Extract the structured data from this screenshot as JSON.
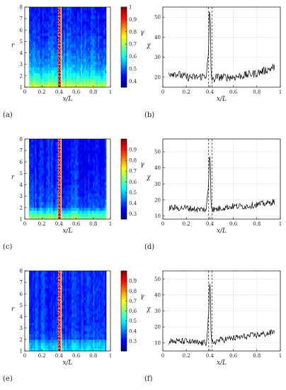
{
  "chart_data": [
    {
      "panel": "(a)",
      "type": "heatmap",
      "xlabel": "x/L",
      "ylabel": "r",
      "colorbar_label": "γ",
      "xlim": [
        0,
        1
      ],
      "ylim": [
        1,
        8
      ],
      "clim": [
        0.35,
        1
      ],
      "x_ticks": [
        "0",
        "0.2",
        "0.4",
        "0.6",
        "0.8",
        "1"
      ],
      "y_ticks": [
        "1",
        "2",
        "3",
        "4",
        "5",
        "6",
        "7",
        "8"
      ],
      "colorbar_ticks": [
        "0.4",
        "0.5",
        "0.6",
        "0.7",
        "0.8",
        "0.9",
        "1"
      ],
      "base_profile": {
        "r": [
          1,
          1.5,
          2,
          2.5,
          3,
          4,
          5,
          6,
          7,
          8
        ],
        "value": [
          0.74,
          0.66,
          0.6,
          0.56,
          0.53,
          0.5,
          0.48,
          0.46,
          0.45,
          0.44
        ]
      },
      "band_x": [
        0.39,
        0.42
      ],
      "band_value": 0.95,
      "data_x_range": [
        0.05,
        0.95
      ],
      "colormap": "jet"
    },
    {
      "panel": "(b)",
      "type": "line",
      "xlabel": "x/L",
      "ylabel": "χ",
      "xlim": [
        0,
        1
      ],
      "ylim": [
        15,
        55
      ],
      "x_ticks": [
        "0",
        "0.2",
        "0.4",
        "0.6",
        "0.8",
        "1"
      ],
      "y_ticks": [
        "20",
        "30",
        "40",
        "50"
      ],
      "dashed_lines_x": [
        0.39,
        0.42
      ],
      "grid": true,
      "series": [
        {
          "x": [
            0.05,
            0.1,
            0.2,
            0.3,
            0.37,
            0.39,
            0.395,
            0.4,
            0.405,
            0.41,
            0.42,
            0.45,
            0.5,
            0.6,
            0.7,
            0.8,
            0.9,
            0.95
          ],
          "values": [
            22,
            22,
            20,
            20,
            21,
            32,
            50,
            52,
            48,
            24,
            18,
            20,
            20,
            20,
            21,
            22,
            24,
            25
          ]
        }
      ]
    },
    {
      "panel": "(c)",
      "type": "heatmap",
      "xlabel": "x/L",
      "ylabel": "r",
      "colorbar_label": "γ",
      "xlim": [
        0,
        1
      ],
      "ylim": [
        1,
        8
      ],
      "clim": [
        0.25,
        1
      ],
      "x_ticks": [
        "0",
        "0.2",
        "0.4",
        "0.6",
        "0.8",
        "1"
      ],
      "y_ticks": [
        "1",
        "2",
        "3",
        "4",
        "5",
        "6",
        "7",
        "8"
      ],
      "colorbar_ticks": [
        "0.3",
        "0.4",
        "0.5",
        "0.6",
        "0.7",
        "0.8",
        "0.9"
      ],
      "base_profile": {
        "r": [
          1,
          1.3,
          1.7,
          2,
          2.5,
          3,
          4,
          5,
          6,
          7,
          8
        ],
        "value": [
          0.66,
          0.6,
          0.52,
          0.42,
          0.4,
          0.39,
          0.37,
          0.36,
          0.36,
          0.35,
          0.35
        ]
      },
      "band_x": [
        0.39,
        0.42
      ],
      "band_value": 0.92,
      "data_x_range": [
        0.05,
        0.95
      ],
      "colormap": "jet"
    },
    {
      "panel": "(d)",
      "type": "line",
      "xlabel": "x/L",
      "ylabel": "χ",
      "xlim": [
        0,
        1
      ],
      "ylim": [
        8,
        58
      ],
      "x_ticks": [
        "0",
        "0.2",
        "0.4",
        "0.6",
        "0.8",
        "1"
      ],
      "y_ticks": [
        "10",
        "20",
        "30",
        "40",
        "50"
      ],
      "dashed_lines_x": [
        0.39,
        0.42
      ],
      "grid": true,
      "series": [
        {
          "x": [
            0.05,
            0.1,
            0.2,
            0.3,
            0.37,
            0.39,
            0.395,
            0.4,
            0.405,
            0.41,
            0.42,
            0.45,
            0.5,
            0.6,
            0.7,
            0.8,
            0.9,
            0.95
          ],
          "values": [
            15,
            15,
            15,
            14,
            14,
            30,
            47,
            48,
            44,
            20,
            14,
            14,
            15,
            16,
            16,
            17,
            18,
            19
          ]
        }
      ]
    },
    {
      "panel": "(e)",
      "type": "heatmap",
      "xlabel": "x/L",
      "ylabel": "r",
      "colorbar_label": "γ",
      "xlim": [
        0,
        1
      ],
      "ylim": [
        1,
        8
      ],
      "clim": [
        0.2,
        1
      ],
      "x_ticks": [
        "0",
        "0.2",
        "0.4",
        "0.6",
        "0.8",
        "1"
      ],
      "y_ticks": [
        "1",
        "2",
        "3",
        "4",
        "5",
        "6",
        "7",
        "8"
      ],
      "colorbar_ticks": [
        "0.3",
        "0.4",
        "0.5",
        "0.6",
        "0.7",
        "0.8",
        "0.9"
      ],
      "base_profile": {
        "r": [
          1,
          1.4,
          1.8,
          2.1,
          3,
          4,
          5,
          6,
          7,
          8
        ],
        "value": [
          0.48,
          0.46,
          0.44,
          0.36,
          0.34,
          0.33,
          0.33,
          0.33,
          0.33,
          0.33
        ]
      },
      "band_x": [
        0.39,
        0.42
      ],
      "band_value": 0.9,
      "data_x_range": [
        0.05,
        0.95
      ],
      "colormap": "jet"
    },
    {
      "panel": "(f)",
      "type": "line",
      "xlabel": "x/L",
      "ylabel": "χ",
      "xlim": [
        0,
        1
      ],
      "ylim": [
        5,
        55
      ],
      "x_ticks": [
        "0",
        "0.2",
        "0.4",
        "0.6",
        "0.8",
        "1"
      ],
      "y_ticks": [
        "10",
        "20",
        "30",
        "40",
        "50"
      ],
      "dashed_lines_x": [
        0.39,
        0.42
      ],
      "grid": true,
      "series": [
        {
          "x": [
            0.05,
            0.1,
            0.2,
            0.3,
            0.37,
            0.39,
            0.395,
            0.4,
            0.405,
            0.41,
            0.42,
            0.45,
            0.5,
            0.6,
            0.7,
            0.8,
            0.9,
            0.95
          ],
          "values": [
            11,
            11,
            11,
            10,
            10,
            28,
            43,
            44,
            40,
            14,
            10,
            11,
            12,
            13,
            14,
            15,
            16,
            17
          ]
        }
      ]
    }
  ]
}
